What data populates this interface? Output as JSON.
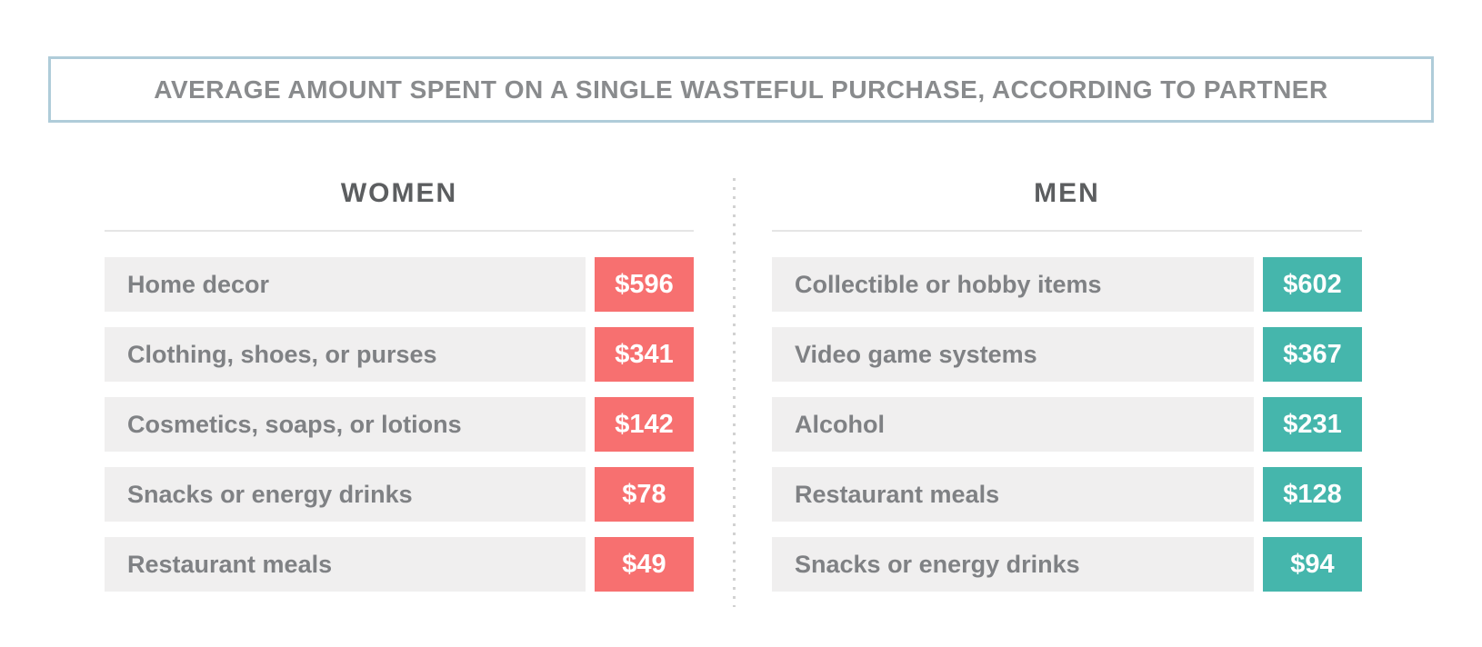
{
  "title": "AVERAGE AMOUNT SPENT ON A SINGLE WASTEFUL PURCHASE, ACCORDING TO PARTNER",
  "colors": {
    "women_accent": "#f77070",
    "men_accent": "#45b6ac",
    "row_background": "#f0efef",
    "title_border": "#afccd9",
    "label_text": "#7f8184",
    "header_text": "#5c5e60",
    "title_text": "#898b8d"
  },
  "columns": [
    {
      "header": "WOMEN",
      "accent_color": "#f77070",
      "items": [
        {
          "label": "Home decor",
          "value": "$596"
        },
        {
          "label": "Clothing, shoes, or purses",
          "value": "$341"
        },
        {
          "label": "Cosmetics, soaps, or lotions",
          "value": "$142"
        },
        {
          "label": "Snacks or energy drinks",
          "value": "$78"
        },
        {
          "label": "Restaurant meals",
          "value": "$49"
        }
      ]
    },
    {
      "header": "MEN",
      "accent_color": "#45b6ac",
      "items": [
        {
          "label": "Collectible or hobby items",
          "value": "$602"
        },
        {
          "label": "Video game systems",
          "value": "$367"
        },
        {
          "label": "Alcohol",
          "value": "$231"
        },
        {
          "label": "Restaurant meals",
          "value": "$128"
        },
        {
          "label": "Snacks or energy drinks",
          "value": "$94"
        }
      ]
    }
  ],
  "chart_data": {
    "type": "table",
    "title": "AVERAGE AMOUNT SPENT ON A SINGLE WASTEFUL PURCHASE, ACCORDING TO PARTNER",
    "series": [
      {
        "name": "WOMEN",
        "categories": [
          "Home decor",
          "Clothing, shoes, or purses",
          "Cosmetics, soaps, or lotions",
          "Snacks or energy drinks",
          "Restaurant meals"
        ],
        "values": [
          596,
          341,
          142,
          78,
          49
        ],
        "unit": "USD",
        "accent_color": "#f77070"
      },
      {
        "name": "MEN",
        "categories": [
          "Collectible or hobby items",
          "Video game systems",
          "Alcohol",
          "Restaurant meals",
          "Snacks or energy drinks"
        ],
        "values": [
          602,
          367,
          231,
          128,
          94
        ],
        "unit": "USD",
        "accent_color": "#45b6ac"
      }
    ],
    "legend_position": "none",
    "grid": false
  }
}
